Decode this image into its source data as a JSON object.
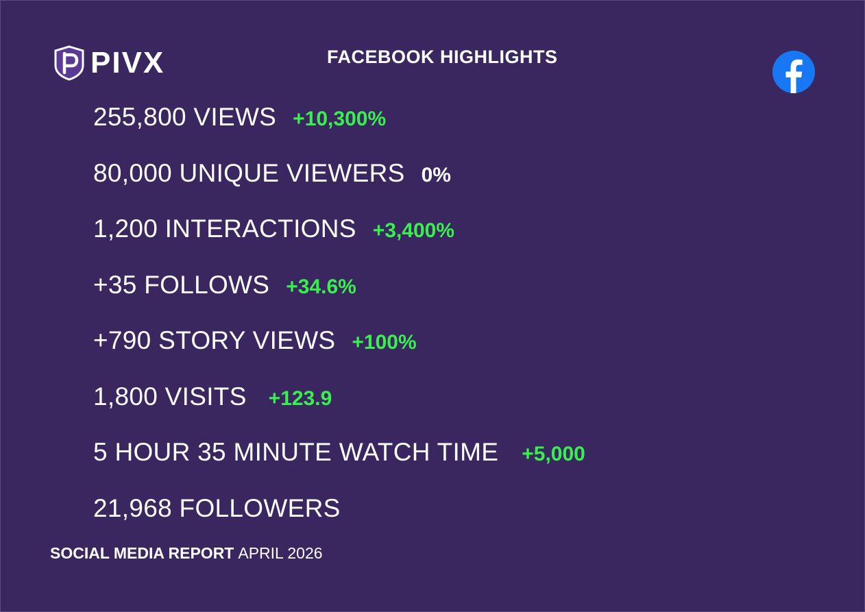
{
  "header": {
    "brand": "PIVX",
    "title": "FACEBOOK HIGHLIGHTS",
    "icons": {
      "brand": "pivx-shield-icon",
      "social": "facebook-icon"
    }
  },
  "colors": {
    "background": "#3b2760",
    "positive": "#38f04d",
    "neutral": "#ffffff",
    "facebook": "#1877f2"
  },
  "stats": [
    {
      "label": "255,800 VIEWS",
      "change": "+10,300%",
      "trend": "up"
    },
    {
      "label": "80,000 UNIQUE VIEWERS",
      "change": "0%",
      "trend": "flat"
    },
    {
      "label": "1,200 INTERACTIONS",
      "change": "+3,400%",
      "trend": "up"
    },
    {
      "label": "+35 FOLLOWS",
      "change": "+34.6%",
      "trend": "up"
    },
    {
      "label": "+790 STORY VIEWS",
      "change": "+100%",
      "trend": "up"
    },
    {
      "label": "1,800 VISITS",
      "change": "+123.9",
      "trend": "up"
    },
    {
      "label": "5 HOUR 35 MINUTE WATCH TIME",
      "change": "+5,000",
      "trend": "up"
    },
    {
      "label": "21,968 FOLLOWERS",
      "change": "",
      "trend": "none"
    }
  ],
  "footer": {
    "report": "SOCIAL MEDIA REPORT",
    "date": "APRIL 2026"
  }
}
